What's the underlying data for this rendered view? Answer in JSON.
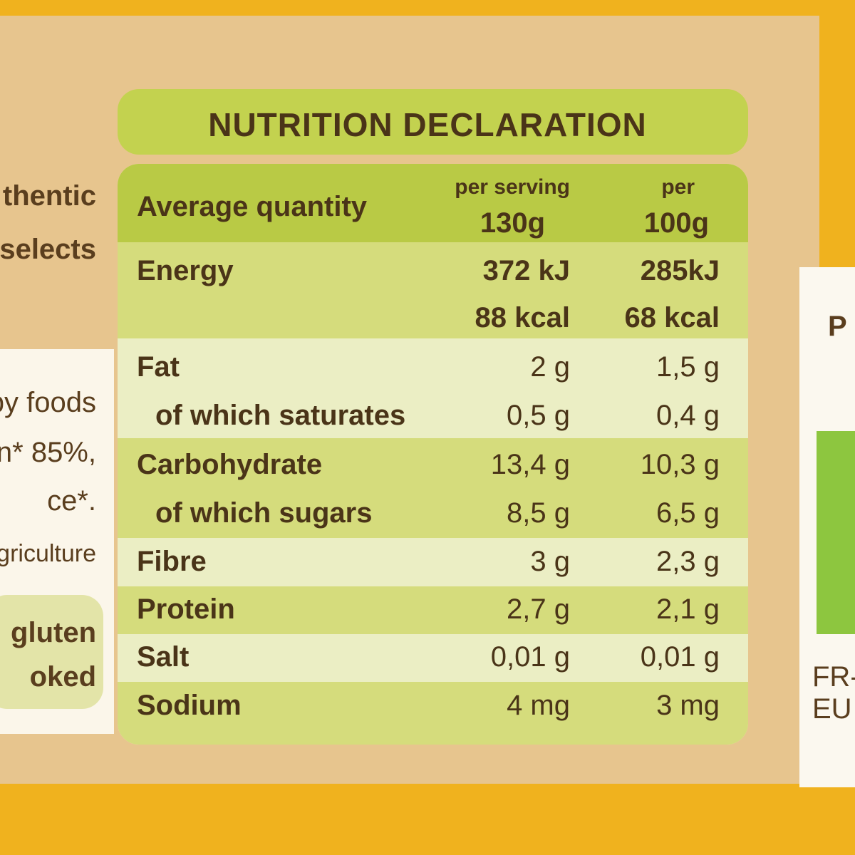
{
  "title": "NUTRITION DECLARATION",
  "header": {
    "label": "Average quantity",
    "per_serving": [
      "per serving",
      "130g"
    ],
    "per_100g": [
      "per",
      "100g"
    ]
  },
  "rows": [
    {
      "label": "Energy",
      "per_serving": [
        "372 kJ",
        "88 kcal"
      ],
      "per_100g": [
        "285kJ",
        "68 kcal"
      ]
    },
    {
      "label": "Fat",
      "per_serving": "2 g",
      "per_100g": "1,5 g"
    },
    {
      "label": "of which saturates",
      "per_serving": "0,5 g",
      "per_100g": "0,4 g"
    },
    {
      "label": "Carbohydrate",
      "per_serving": "13,4 g",
      "per_100g": "10,3 g"
    },
    {
      "label": "of which sugars",
      "per_serving": "8,5 g",
      "per_100g": "6,5 g"
    },
    {
      "label": "Fibre",
      "per_serving": "3 g",
      "per_100g": "2,3 g"
    },
    {
      "label": "Protein",
      "per_serving": "2,7 g",
      "per_100g": "2,1 g"
    },
    {
      "label": "Salt",
      "per_serving": "0,01 g",
      "per_100g": "0,01 g"
    },
    {
      "label": "Sodium",
      "per_serving": "4 mg",
      "per_100g": "3 mg"
    }
  ],
  "left_text": [
    "thentic",
    "selects",
    "by foods",
    "n* 85%,",
    "ce*.",
    "griculture",
    "gluten",
    "oked"
  ],
  "right_text": [
    "P",
    "FR-",
    "EU A"
  ]
}
